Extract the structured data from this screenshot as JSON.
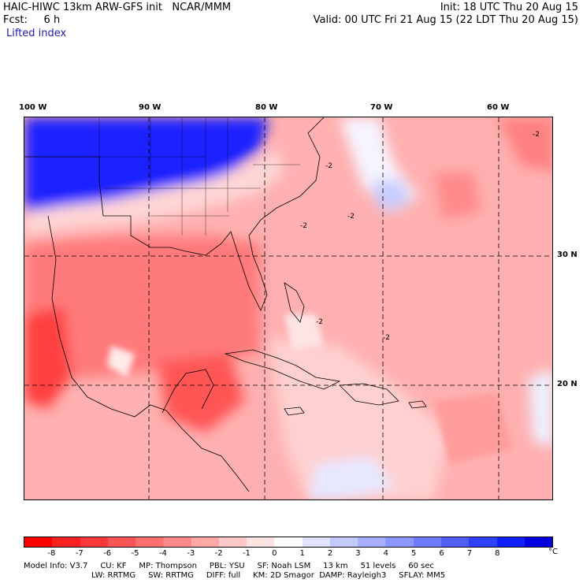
{
  "header": {
    "title": "HAIC-HIWC 13km ARW-GFS init   NCAR/MMM",
    "forecast": "Fcst:     6 h",
    "init": "Init: 18 UTC Thu 20 Aug 15",
    "valid": "Valid: 00 UTC Fri 21 Aug 15 (22 LDT Thu 20 Aug 15)",
    "field": "Lifted index"
  },
  "axes": {
    "lon_labels": [
      "100 W",
      "90 W",
      "80 W",
      "70 W",
      "60 W"
    ],
    "lat_labels": [
      "30 N",
      "20 N"
    ]
  },
  "colorbar": {
    "colors": [
      "#ff0000",
      "#ff2020",
      "#ff3a3a",
      "#ff5555",
      "#ff7070",
      "#ff8a8a",
      "#ffa8a8",
      "#ffc8c8",
      "#ffe4e4",
      "#ffffff",
      "#e0e4ff",
      "#c4caff",
      "#a8b0ff",
      "#8c96ff",
      "#707cff",
      "#5060ff",
      "#3040ff",
      "#1020ff",
      "#0000e0"
    ],
    "tick_labels": [
      "-8",
      "-7",
      "-6",
      "-5",
      "-4",
      "-3",
      "-2",
      "-1",
      "0",
      "1",
      "2",
      "3",
      "4",
      "5",
      "6",
      "7",
      "8"
    ],
    "unit": "°C"
  },
  "contour_labels": [
    "-2",
    "-2",
    "-2",
    "-2",
    "-2",
    "-2"
  ],
  "model_info": {
    "line1": [
      "Model Info: V3.7",
      "CU: KF",
      "MP: Thompson",
      "PBL: YSU",
      "SF: Noah LSM",
      "13 km",
      "51 levels",
      "60 sec"
    ],
    "line2": [
      "LW: RRTMG",
      "SW: RRTMG",
      "DIFF: full",
      "KM: 2D Smagor",
      "DAMP: Rayleigh3",
      "SFLAY: MM5"
    ]
  }
}
